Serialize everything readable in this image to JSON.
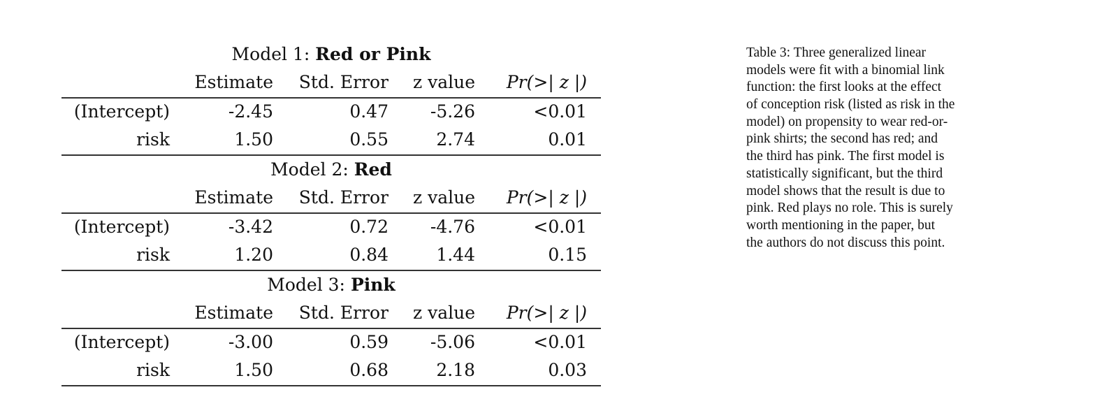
{
  "columns": [
    "Estimate",
    "Std. Error",
    "z value",
    "Pr(>| z |)"
  ],
  "models": [
    {
      "prefix": "Model 1: ",
      "name": "Red or Pink",
      "rows": [
        {
          "label": "(Intercept)",
          "values": [
            "-2.45",
            "0.47",
            "-5.26",
            "<0.01"
          ]
        },
        {
          "label": "risk",
          "values": [
            "1.50",
            "0.55",
            "2.74",
            "0.01"
          ]
        }
      ]
    },
    {
      "prefix": "Model 2: ",
      "name": "Red",
      "rows": [
        {
          "label": "(Intercept)",
          "values": [
            "-3.42",
            "0.72",
            "-4.76",
            "<0.01"
          ]
        },
        {
          "label": "risk",
          "values": [
            "1.20",
            "0.84",
            "1.44",
            "0.15"
          ]
        }
      ]
    },
    {
      "prefix": "Model 3: ",
      "name": "Pink",
      "rows": [
        {
          "label": "(Intercept)",
          "values": [
            "-3.00",
            "0.59",
            "-5.06",
            "<0.01"
          ]
        },
        {
          "label": "risk",
          "values": [
            "1.50",
            "0.68",
            "2.18",
            "0.03"
          ]
        }
      ]
    }
  ],
  "caption_lines": [
    "Table 3: Three generalized linear",
    "models were fit with a binomial link",
    "function: the first looks at the effect",
    "of conception risk (listed as risk in the",
    "model) on propensity to wear red-or-",
    "pink shirts; the second has red; and",
    "the third has pink. The first model is",
    "statistically significant, but the third",
    "model shows that the result is due to",
    "pink. Red plays no role. This is surely",
    "worth mentioning in the paper, but",
    "the authors do not discuss this point."
  ]
}
